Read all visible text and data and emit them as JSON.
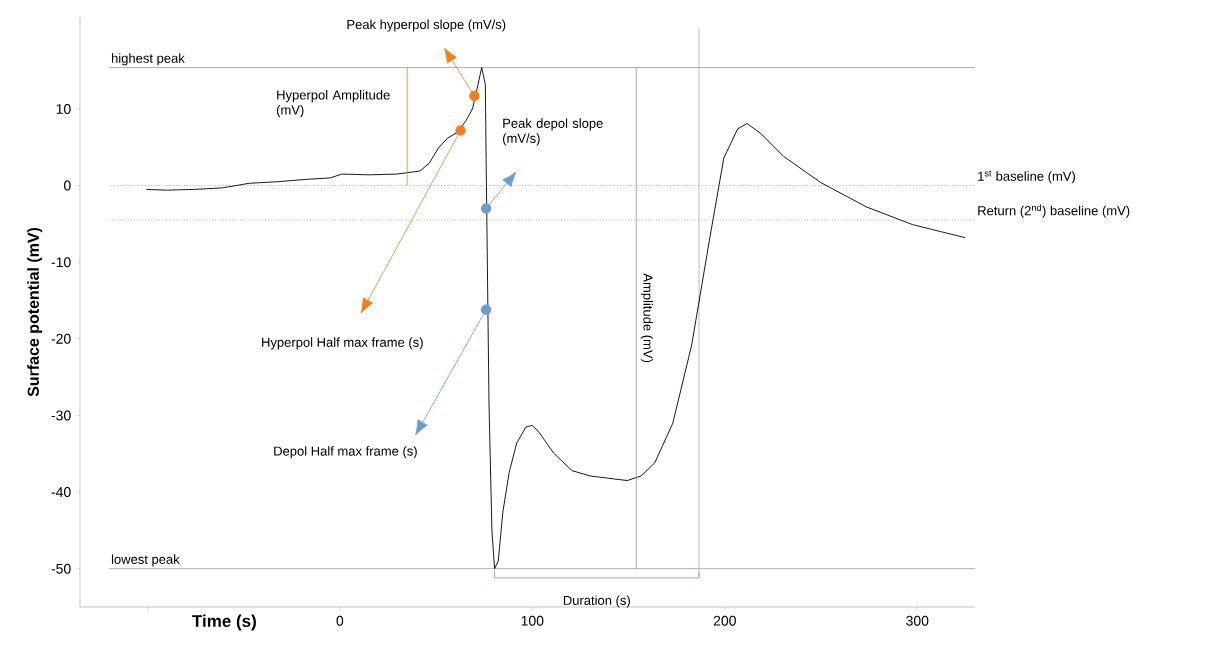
{
  "chart_data": {
    "type": "line",
    "xlabel": "Time (s)",
    "ylabel": "Surface potential (mV)",
    "xlim": [
      -135,
      330
    ],
    "ylim": [
      -55,
      22
    ],
    "xticks": [
      {
        "value": -100,
        "label": null
      },
      0,
      100,
      200,
      300
    ],
    "yticks": [
      -50,
      -40,
      -30,
      -20,
      -10,
      0,
      10
    ],
    "series": [
      {
        "color": "#000000",
        "x": [
          -100.5,
          -90,
          -75.6,
          -61,
          -47,
          -32.5,
          -18,
          -5,
          1,
          15.3,
          29.7,
          41.6,
          46.4,
          51.2,
          56,
          60.8,
          65.6,
          68.9,
          71.8,
          73.7,
          75.6,
          76,
          76.6,
          77.5,
          79,
          80.4,
          82.3,
          84.7,
          88,
          91.9,
          96.7,
          100,
          103.8,
          111,
          120.6,
          130,
          139.7,
          149.3,
          156.5,
          163.6,
          173,
          182.8,
          192.3,
          199.5,
          206.7,
          211.5,
          218.7,
          230.6,
          249.8,
          273.7,
          297.6,
          312,
          324.9
        ],
        "values": [
          -0.5,
          -0.6,
          -0.5,
          -0.3,
          0.3,
          0.5,
          0.8,
          1.0,
          1.5,
          1.4,
          1.5,
          1.9,
          2.9,
          4.9,
          6.2,
          6.9,
          8.5,
          10,
          13.2,
          15.4,
          13.2,
          3.6,
          -9.2,
          -28.5,
          -45,
          -50,
          -49,
          -42.6,
          -37.4,
          -33.6,
          -31.5,
          -31.3,
          -32.3,
          -34.9,
          -37.2,
          -37.9,
          -38.2,
          -38.5,
          -37.9,
          -36.2,
          -31,
          -20.8,
          -6.7,
          3.6,
          7.4,
          8.1,
          6.8,
          3.8,
          0.4,
          -2.8,
          -5.1,
          -6,
          -6.8
        ]
      },
      {
        "type": "scatter",
        "color": "#f07f1c",
        "x": [
          62.7,
          69.9
        ],
        "values": [
          7.2,
          11.7
        ]
      },
      {
        "type": "scatter",
        "color": "#6a9bd1",
        "x": [
          76,
          76
        ],
        "values": [
          -3,
          -16.2
        ]
      },
      {
        "color": "#f07f1c",
        "x": [
          35,
          35
        ],
        "values": [
          0,
          15.4
        ]
      },
      {
        "color": "#6a9bd1",
        "x": [
          154,
          154
        ],
        "values": [
          -50,
          15.4
        ]
      },
      {
        "color": "#6a9bd1",
        "x": [
          80.4,
          80.4,
          186.6,
          186.6
        ],
        "values": [
          -50.4,
          -51.2,
          -51.2,
          -50.4
        ]
      }
    ],
    "ref_lines": [
      {
        "axis": "y",
        "value": 15.4,
        "label": "highest peak",
        "color": "#999999",
        "line_style": "solid"
      },
      {
        "axis": "y",
        "value": -50,
        "label": "lowest peak",
        "color": "#999999",
        "line_style": "solid"
      },
      {
        "axis": "y",
        "value": 0,
        "label": "1$^{st}$ baseline (mV)",
        "color": "#888888",
        "line_style": "dotted"
      },
      {
        "axis": "y",
        "value": -4.5,
        "label": "Return (2$^{nd}$) baseline (mV)",
        "color": "#888888",
        "line_style": "dotted"
      },
      {
        "axis": "x",
        "value": 186.6,
        "color": "#aaaaaa",
        "line_style": "solid"
      }
    ],
    "annotations": [
      "Peak hyperpol slope (mV/s)",
      "Hyperpol Amplitude (mV)",
      "Peak depol slope (mV/s)",
      "Hyperpol Half max frame (s)",
      "Depol Half max frame (s)",
      "Amplitude (mV)",
      "Duration (s)"
    ]
  }
}
